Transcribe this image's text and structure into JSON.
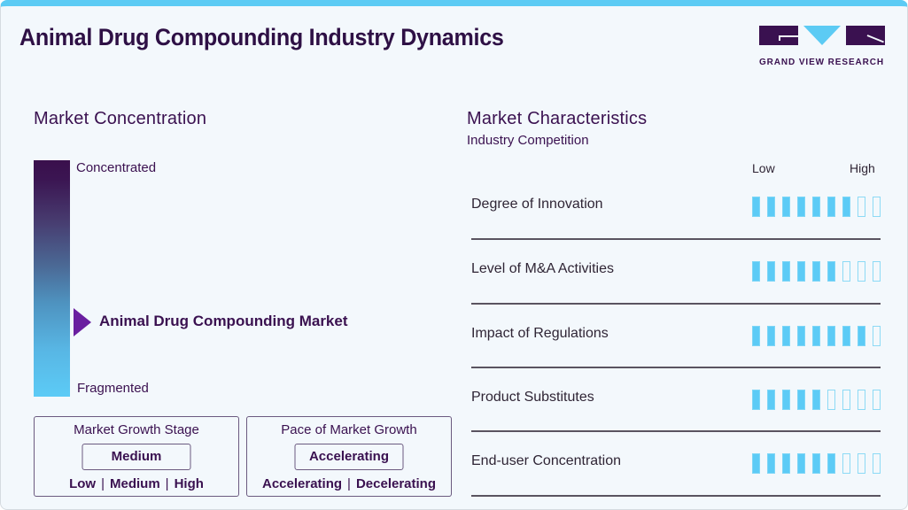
{
  "header": {
    "title": "Animal Drug Compounding Industry Dynamics",
    "logo_text": "GRAND VIEW RESEARCH",
    "accent_color": "#5ccbf4",
    "brand_color": "#3a1150"
  },
  "market_concentration": {
    "title": "Market Concentration",
    "top_label": "Concentrated",
    "bottom_label": "Fragmented",
    "marker_label": "Animal Drug Compounding Market",
    "marker_color": "#6a1fa0"
  },
  "growth_stage": {
    "title": "Market Growth Stage",
    "value": "Medium",
    "options": [
      "Low",
      "Medium",
      "High"
    ]
  },
  "growth_pace": {
    "title": "Pace of Market Growth",
    "value": "Accelerating",
    "options": [
      "Accelerating",
      "Decelerating"
    ]
  },
  "market_characteristics": {
    "title": "Market Characteristics",
    "subtitle": "Industry Competition",
    "scale_low": "Low",
    "scale_high": "High",
    "max_score": 9,
    "rows": [
      {
        "label": "Degree of Innovation",
        "score": 7
      },
      {
        "label": "Level of M&A Activities",
        "score": 6
      },
      {
        "label": "Impact of Regulations",
        "score": 8
      },
      {
        "label": "Product Substitutes",
        "score": 5
      },
      {
        "label": "End-user Concentration",
        "score": 6
      }
    ]
  }
}
